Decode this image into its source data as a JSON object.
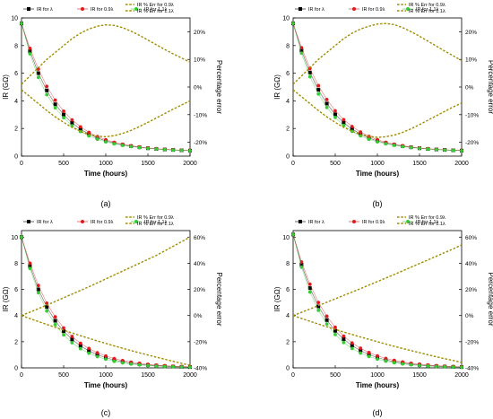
{
  "colors": {
    "series_lambda": "#000000",
    "series_09": "#e31a1c",
    "series_11": "#33cc33",
    "series_err": "#a08c00"
  },
  "chart_data": [
    {
      "type": "line",
      "caption": "(a)",
      "xlabel": "Time (hours)",
      "ylabel": "IR (GΩ)",
      "ylabel_right": "Percentage error",
      "xlim": [
        0,
        2000
      ],
      "ylim": [
        0,
        10
      ],
      "y2lim": [
        -25,
        25
      ],
      "xticks": [
        0,
        500,
        1000,
        1500,
        2000
      ],
      "yticks": [
        0,
        2,
        4,
        6,
        8,
        10
      ],
      "y2ticks": [
        -20,
        -10,
        0,
        10,
        20
      ],
      "y2ticklabels": [
        "-20%",
        "-10%",
        "0%",
        "10%",
        "20%"
      ],
      "legend_left": [
        "IR for λ",
        "IR for 0.9λ",
        "IR for 1.1λ"
      ],
      "legend_right": [
        "IR % Err for 0.9λ",
        "IR % Err for 1.1λ"
      ],
      "x": [
        0,
        100,
        200,
        300,
        400,
        500,
        600,
        700,
        800,
        900,
        1000,
        1100,
        1200,
        1300,
        1400,
        1500,
        1600,
        1700,
        1800,
        1900,
        2000
      ],
      "series": [
        {
          "name": "IR for λ",
          "axis": "left",
          "values": [
            9.6,
            7.6,
            6.0,
            4.75,
            3.75,
            3.0,
            2.4,
            1.95,
            1.6,
            1.32,
            1.1,
            0.95,
            0.82,
            0.72,
            0.64,
            0.57,
            0.52,
            0.48,
            0.45,
            0.42,
            0.4
          ]
        },
        {
          "name": "IR for 0.9λ",
          "axis": "left",
          "values": [
            9.6,
            7.8,
            6.3,
            5.05,
            4.05,
            3.25,
            2.62,
            2.12,
            1.72,
            1.42,
            1.18,
            1.0,
            0.86,
            0.75,
            0.66,
            0.59,
            0.54,
            0.49,
            0.46,
            0.43,
            0.41
          ]
        },
        {
          "name": "IR for 1.1λ",
          "axis": "left",
          "values": [
            9.6,
            7.4,
            5.7,
            4.45,
            3.5,
            2.78,
            2.2,
            1.78,
            1.46,
            1.22,
            1.03,
            0.89,
            0.78,
            0.69,
            0.62,
            0.56,
            0.51,
            0.47,
            0.44,
            0.41,
            0.39
          ]
        },
        {
          "name": "IR % Err for 0.9λ",
          "axis": "right",
          "values": [
            1,
            4,
            7,
            10,
            12.5,
            15,
            17.5,
            19.5,
            21,
            22,
            22.5,
            22.3,
            21.5,
            20.2,
            18.7,
            17,
            15.3,
            13.6,
            12,
            10.5,
            9
          ]
        },
        {
          "name": "IR % Err for 1.1λ",
          "axis": "right",
          "values": [
            -1,
            -3.5,
            -6,
            -8.5,
            -10.8,
            -12.8,
            -14.6,
            -16,
            -17.2,
            -17.8,
            -18,
            -17.6,
            -16.8,
            -15.7,
            -14.3,
            -12.8,
            -11.2,
            -9.6,
            -8,
            -6.5,
            -5
          ]
        }
      ]
    },
    {
      "type": "line",
      "caption": "(b)",
      "xlabel": "Time (hours)",
      "ylabel": "IR (GΩ)",
      "ylabel_right": "Percentage error",
      "xlim": [
        0,
        2000
      ],
      "ylim": [
        0,
        10
      ],
      "y2lim": [
        -25,
        25
      ],
      "xticks": [
        0,
        500,
        1000,
        1500,
        2000
      ],
      "yticks": [
        0,
        2,
        4,
        6,
        8,
        10
      ],
      "y2ticks": [
        -20,
        -10,
        0,
        10,
        20
      ],
      "y2ticklabels": [
        "-20%",
        "-10%",
        "0%",
        "10%",
        "20%"
      ],
      "legend_left": [
        "IR for λ",
        "IR for 0.9λ",
        "IR for 1.1λ"
      ],
      "legend_right": [
        "IR % Err for 0.9λ",
        "IR % Err for 1.1λ"
      ],
      "x": [
        0,
        100,
        200,
        300,
        400,
        500,
        600,
        700,
        800,
        900,
        1000,
        1100,
        1200,
        1300,
        1400,
        1500,
        1600,
        1700,
        1800,
        1900,
        2000
      ],
      "series": [
        {
          "name": "IR for λ",
          "axis": "left",
          "values": [
            9.6,
            7.65,
            6.05,
            4.8,
            3.8,
            3.02,
            2.42,
            1.96,
            1.6,
            1.32,
            1.1,
            0.95,
            0.82,
            0.72,
            0.64,
            0.57,
            0.52,
            0.48,
            0.45,
            0.42,
            0.4
          ]
        },
        {
          "name": "IR for 0.9λ",
          "axis": "left",
          "values": [
            9.6,
            7.85,
            6.35,
            5.1,
            4.1,
            3.28,
            2.64,
            2.14,
            1.74,
            1.43,
            1.19,
            1.0,
            0.86,
            0.75,
            0.66,
            0.59,
            0.54,
            0.49,
            0.46,
            0.43,
            0.41
          ]
        },
        {
          "name": "IR for 1.1λ",
          "axis": "left",
          "values": [
            9.6,
            7.45,
            5.75,
            4.5,
            3.52,
            2.8,
            2.22,
            1.79,
            1.47,
            1.22,
            1.03,
            0.89,
            0.78,
            0.69,
            0.62,
            0.56,
            0.51,
            0.47,
            0.44,
            0.41,
            0.39
          ]
        },
        {
          "name": "IR % Err for 0.9λ",
          "axis": "right",
          "values": [
            1,
            4,
            7,
            10,
            12.5,
            15,
            17.5,
            19.5,
            21,
            22,
            22.8,
            23,
            22.6,
            21.5,
            20,
            18.4,
            16.6,
            14.8,
            13,
            11.3,
            9.6
          ]
        },
        {
          "name": "IR % Err for 1.1λ",
          "axis": "right",
          "values": [
            -1,
            -3.5,
            -6,
            -8.5,
            -10.8,
            -12.8,
            -14.6,
            -16,
            -17.2,
            -17.8,
            -18.2,
            -18,
            -17.4,
            -16.4,
            -15.1,
            -13.6,
            -12,
            -10.4,
            -8.8,
            -7.2,
            -5.8
          ]
        }
      ]
    },
    {
      "type": "line",
      "caption": "(c)",
      "xlabel": "Time (hours)",
      "ylabel": "IR (GΩ)",
      "ylabel_right": "Percentage error",
      "xlim": [
        0,
        2000
      ],
      "ylim": [
        0,
        10.5
      ],
      "y2lim": [
        -40,
        65
      ],
      "xticks": [
        0,
        500,
        1000,
        1500,
        2000
      ],
      "yticks": [
        0,
        2,
        4,
        6,
        8,
        10
      ],
      "y2ticks": [
        -40,
        -20,
        0,
        20,
        40,
        60
      ],
      "y2ticklabels": [
        "-40%",
        "-20%",
        "0%",
        "20%",
        "40%",
        "60%"
      ],
      "legend_left": [
        "IR for λ",
        "IR for 0.9λ",
        "IR for 1.1λ"
      ],
      "legend_right": [
        "IR % Err for 0.9λ",
        "IR % Err for 1.1λ"
      ],
      "x": [
        0,
        100,
        200,
        300,
        400,
        500,
        600,
        700,
        800,
        900,
        1000,
        1100,
        1200,
        1300,
        1400,
        1500,
        1600,
        1700,
        1800,
        1900,
        2000
      ],
      "series": [
        {
          "name": "IR for λ",
          "axis": "left",
          "values": [
            10.0,
            7.8,
            6.0,
            4.65,
            3.6,
            2.8,
            2.17,
            1.68,
            1.3,
            1.01,
            0.78,
            0.6,
            0.47,
            0.36,
            0.28,
            0.22,
            0.17,
            0.13,
            0.1,
            0.08,
            0.06
          ]
        },
        {
          "name": "IR for 0.9λ",
          "axis": "left",
          "values": [
            10.0,
            8.0,
            6.3,
            4.95,
            3.9,
            3.05,
            2.4,
            1.88,
            1.48,
            1.16,
            0.91,
            0.71,
            0.56,
            0.44,
            0.35,
            0.27,
            0.21,
            0.17,
            0.13,
            0.1,
            0.08
          ]
        },
        {
          "name": "IR for 1.1λ",
          "axis": "left",
          "values": [
            10.0,
            7.6,
            5.75,
            4.35,
            3.3,
            2.52,
            1.92,
            1.47,
            1.12,
            0.86,
            0.66,
            0.5,
            0.38,
            0.29,
            0.22,
            0.17,
            0.13,
            0.1,
            0.08,
            0.06,
            0.05
          ]
        },
        {
          "name": "IR % Err for 0.9λ",
          "axis": "right",
          "values": [
            0,
            2.6,
            5.3,
            8,
            10.8,
            13.6,
            16.4,
            19.2,
            22,
            25,
            28,
            31,
            34,
            37,
            40,
            43,
            46,
            49.5,
            53,
            56.5,
            60
          ]
        },
        {
          "name": "IR % Err for 1.1λ",
          "axis": "right",
          "values": [
            0,
            -2.3,
            -4.6,
            -6.8,
            -9,
            -11.2,
            -13.3,
            -15.4,
            -17.4,
            -19.4,
            -21.3,
            -23.2,
            -25,
            -26.8,
            -28.5,
            -30.2,
            -31.8,
            -33.4,
            -35,
            -36.5,
            -38
          ]
        }
      ]
    },
    {
      "type": "line",
      "caption": "(d)",
      "xlabel": "Time (hours)",
      "ylabel": "IR (GΩ)",
      "ylabel_right": "Percentage error",
      "xlim": [
        0,
        2000
      ],
      "ylim": [
        0,
        10.5
      ],
      "y2lim": [
        -40,
        65
      ],
      "xticks": [
        0,
        500,
        1000,
        1500,
        2000
      ],
      "yticks": [
        0,
        2,
        4,
        6,
        8,
        10
      ],
      "y2ticks": [
        -40,
        -20,
        0,
        20,
        40,
        60
      ],
      "y2ticklabels": [
        "-40%",
        "-20%",
        "0%",
        "20%",
        "40%",
        "60%"
      ],
      "legend_left": [
        "IR for λ",
        "IR for 0.9λ",
        "IR for 1.1λ"
      ],
      "legend_right": [
        "IR % Err for 0.9λ",
        "IR % Err for 1.1λ"
      ],
      "x": [
        0,
        100,
        200,
        300,
        400,
        500,
        600,
        700,
        800,
        900,
        1000,
        1100,
        1200,
        1300,
        1400,
        1500,
        1600,
        1700,
        1800,
        1900,
        2000
      ],
      "series": [
        {
          "name": "IR for λ",
          "axis": "left",
          "values": [
            10.2,
            7.9,
            6.1,
            4.7,
            3.65,
            2.83,
            2.2,
            1.7,
            1.32,
            1.02,
            0.79,
            0.61,
            0.47,
            0.37,
            0.29,
            0.22,
            0.17,
            0.13,
            0.1,
            0.08,
            0.06
          ]
        },
        {
          "name": "IR for 0.9λ",
          "axis": "left",
          "values": [
            10.2,
            8.1,
            6.4,
            5.0,
            3.95,
            3.1,
            2.43,
            1.9,
            1.5,
            1.17,
            0.92,
            0.72,
            0.57,
            0.45,
            0.35,
            0.28,
            0.22,
            0.17,
            0.13,
            0.1,
            0.08
          ]
        },
        {
          "name": "IR for 1.1λ",
          "axis": "left",
          "values": [
            10.2,
            7.7,
            5.8,
            4.4,
            3.35,
            2.55,
            1.94,
            1.48,
            1.13,
            0.87,
            0.67,
            0.51,
            0.39,
            0.3,
            0.23,
            0.18,
            0.14,
            0.1,
            0.08,
            0.06,
            0.05
          ]
        },
        {
          "name": "IR % Err for 0.9λ",
          "axis": "right",
          "values": [
            0,
            2.5,
            5,
            7.6,
            10.2,
            12.8,
            15.4,
            18,
            20.6,
            23.3,
            26,
            28.7,
            31.4,
            34.2,
            37,
            39.8,
            42.6,
            45.4,
            48.2,
            51,
            54
          ]
        },
        {
          "name": "IR % Err for 1.1λ",
          "axis": "right",
          "values": [
            0,
            -2.2,
            -4.4,
            -6.5,
            -8.6,
            -10.6,
            -12.6,
            -14.5,
            -16.4,
            -18.2,
            -20,
            -21.8,
            -23.5,
            -25.2,
            -26.8,
            -28.4,
            -30,
            -31.5,
            -33,
            -34.4,
            -35.8
          ]
        }
      ]
    }
  ]
}
